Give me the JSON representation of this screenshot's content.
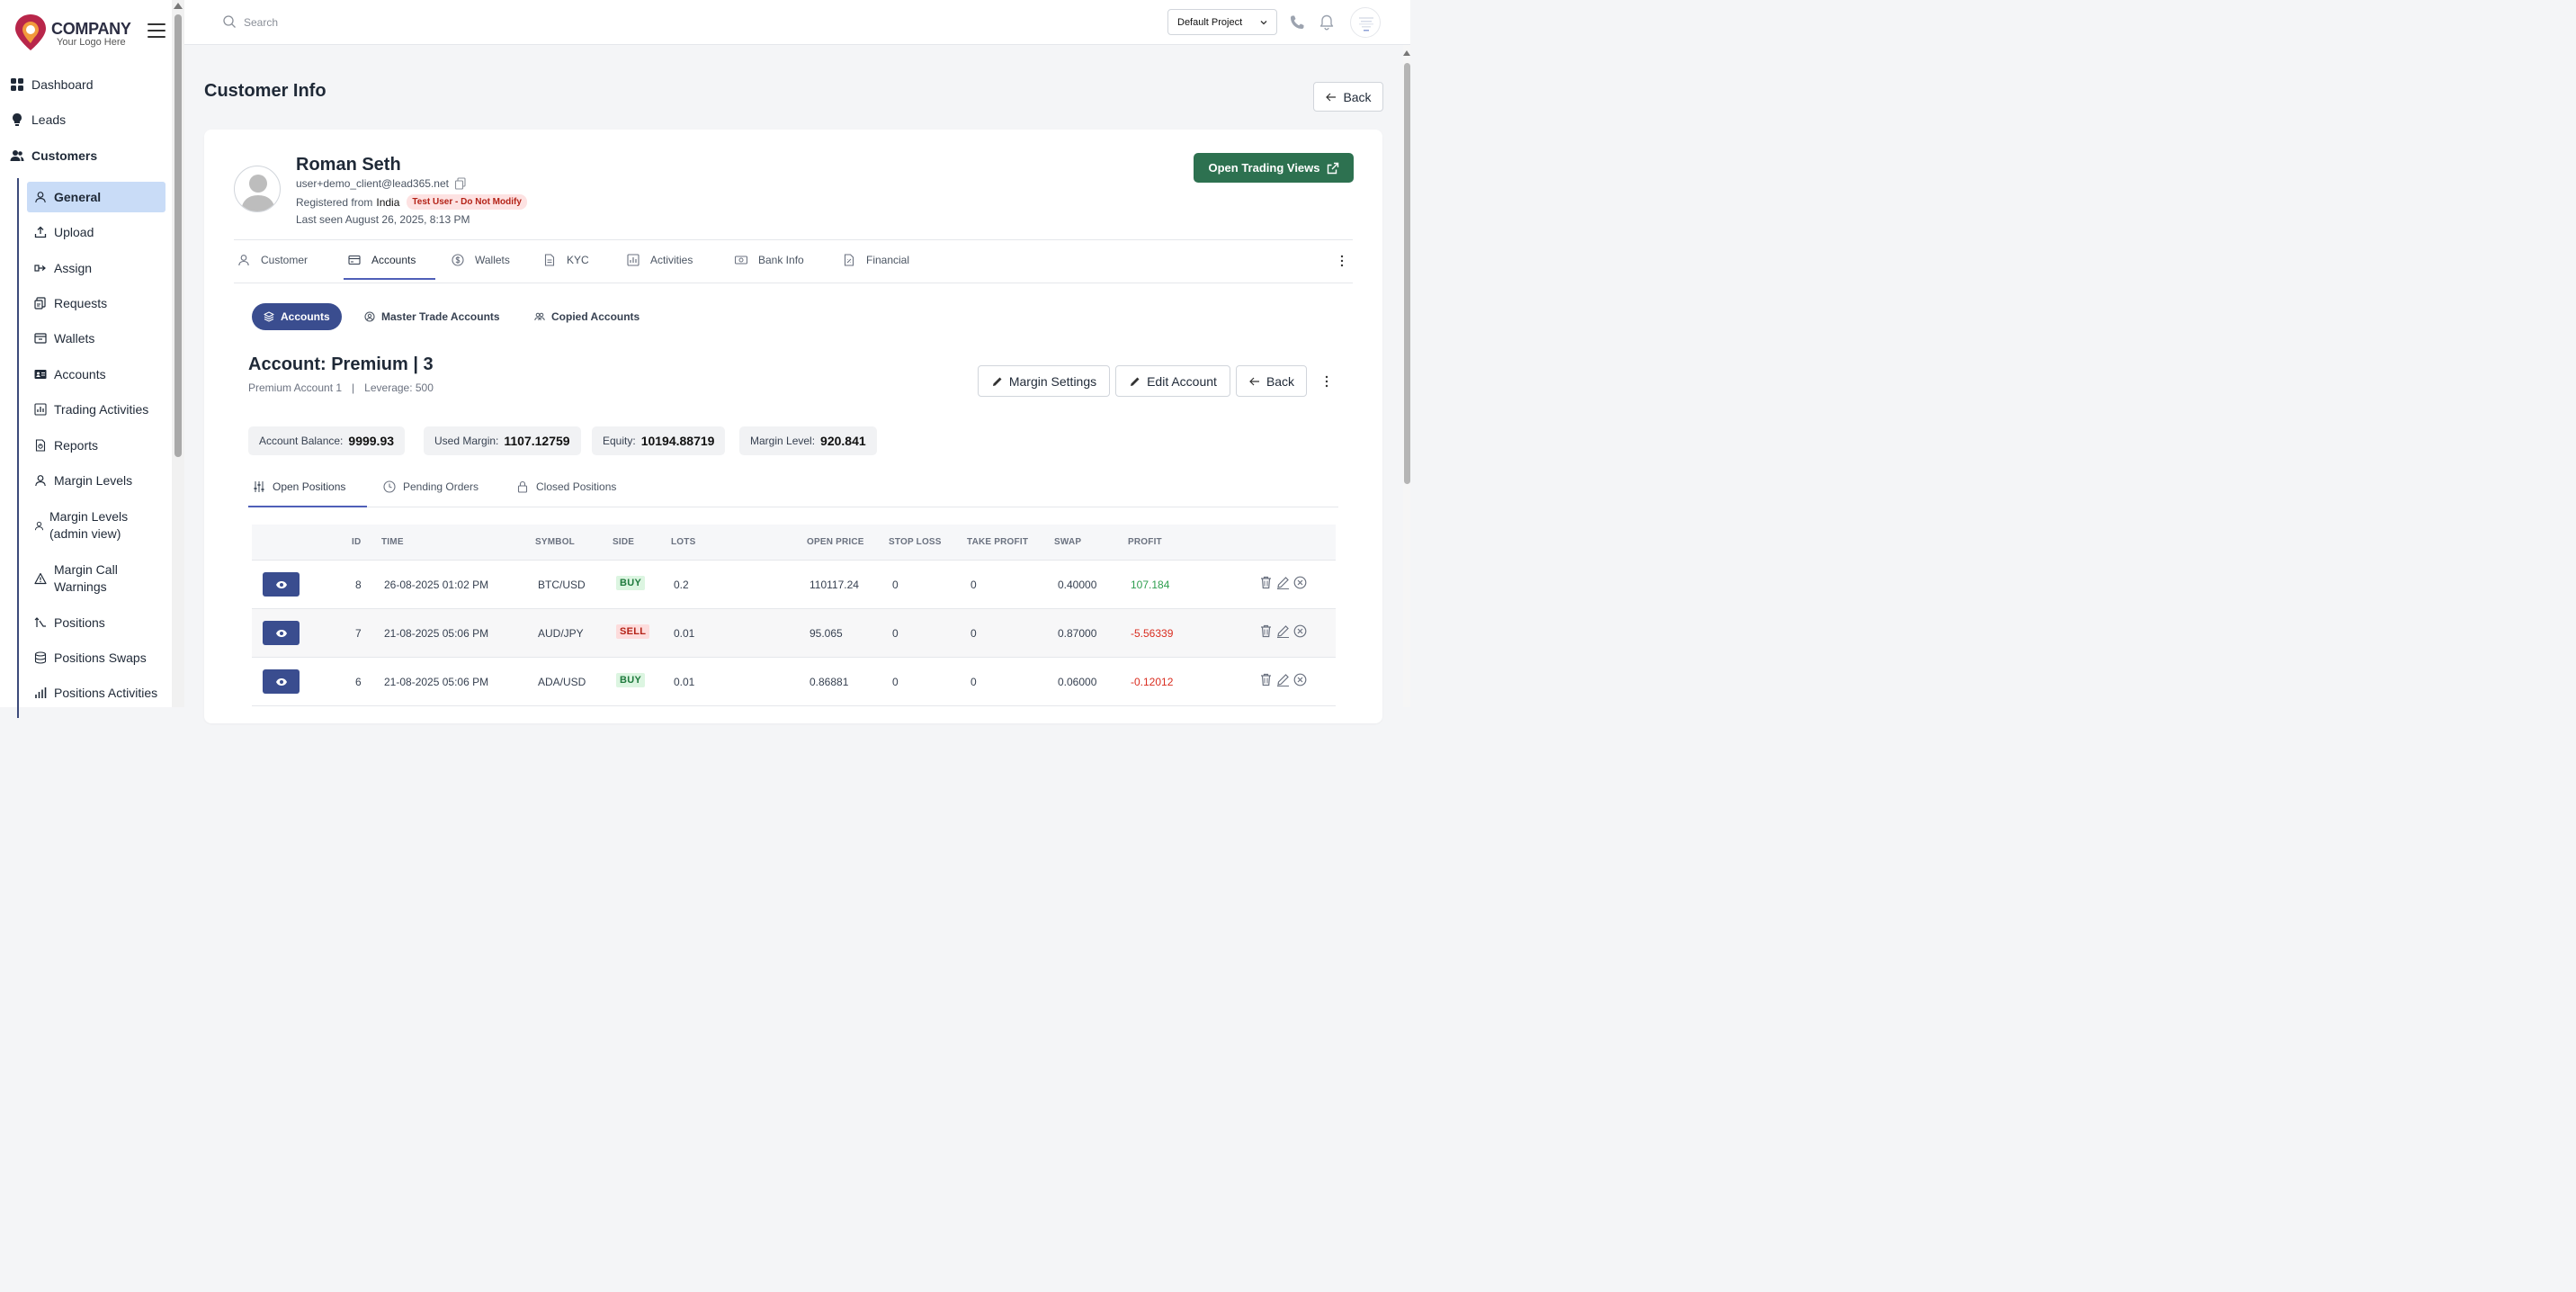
{
  "brand": {
    "name": "COMPANY",
    "tagline": "Your Logo Here"
  },
  "sidebar": {
    "top_items": [
      {
        "label": "Dashboard",
        "icon": "dashboard-grid-icon"
      },
      {
        "label": "Leads",
        "icon": "lightbulb-icon"
      },
      {
        "label": "Customers",
        "icon": "users-icon"
      }
    ],
    "sub_items": [
      {
        "label": "General",
        "icon": "user-icon",
        "active": true
      },
      {
        "label": "Upload",
        "icon": "upload-icon"
      },
      {
        "label": "Assign",
        "icon": "assign-icon"
      },
      {
        "label": "Requests",
        "icon": "requests-icon"
      },
      {
        "label": "Wallets",
        "icon": "wallet-icon"
      },
      {
        "label": "Accounts",
        "icon": "id-card-icon"
      },
      {
        "label": "Trading Activities",
        "icon": "chart-icon"
      },
      {
        "label": "Reports",
        "icon": "report-icon"
      },
      {
        "label": "Margin Levels",
        "icon": "user-icon"
      },
      {
        "label": "Margin Levels (admin view)",
        "icon": "user-icon"
      },
      {
        "label": "Margin Call Warnings",
        "icon": "warning-icon"
      },
      {
        "label": "Positions",
        "icon": "positions-icon"
      },
      {
        "label": "Positions Swaps",
        "icon": "database-icon"
      },
      {
        "label": "Positions Activities",
        "icon": "bar-chart-icon"
      }
    ]
  },
  "header": {
    "search_placeholder": "Search",
    "project": "Default Project"
  },
  "page": {
    "title": "Customer Info",
    "back_label": "Back"
  },
  "profile": {
    "name": "Roman Seth",
    "email": "user+demo_client@lead365.net",
    "registered_prefix": "Registered from",
    "country": "India",
    "badge": "Test User - Do Not Modify",
    "last_seen": "Last seen August 26, 2025, 8:13 PM",
    "open_trading_label": "Open Trading Views"
  },
  "main_tabs": [
    {
      "label": "Customer",
      "icon": "user-icon"
    },
    {
      "label": "Accounts",
      "icon": "credit-card-icon",
      "active": true
    },
    {
      "label": "Wallets",
      "icon": "dollar-circle-icon"
    },
    {
      "label": "KYC",
      "icon": "document-icon"
    },
    {
      "label": "Activities",
      "icon": "activity-chart-icon"
    },
    {
      "label": "Bank Info",
      "icon": "bank-note-icon"
    },
    {
      "label": "Financial",
      "icon": "financial-doc-icon"
    }
  ],
  "sub_tabs": [
    {
      "label": "Accounts",
      "icon": "layers-icon",
      "active": true
    },
    {
      "label": "Master Trade Accounts",
      "icon": "user-circle-icon"
    },
    {
      "label": "Copied Accounts",
      "icon": "copied-users-icon"
    }
  ],
  "account": {
    "title": "Account: Premium | 3",
    "name": "Premium Account 1",
    "separator": "|",
    "leverage": "Leverage: 500",
    "margin_settings_label": "Margin Settings",
    "edit_account_label": "Edit Account",
    "back_label": "Back"
  },
  "stats": [
    {
      "label": "Account Balance:",
      "value": "9999.93"
    },
    {
      "label": "Used Margin:",
      "value": "1107.12759"
    },
    {
      "label": "Equity:",
      "value": "10194.88719"
    },
    {
      "label": "Margin Level:",
      "value": "920.841"
    }
  ],
  "position_tabs": [
    {
      "label": "Open Positions",
      "icon": "sliders-icon",
      "active": true
    },
    {
      "label": "Pending Orders",
      "icon": "clock-icon"
    },
    {
      "label": "Closed Positions",
      "icon": "lock-icon"
    }
  ],
  "table": {
    "columns": [
      "ID",
      "TIME",
      "SYMBOL",
      "SIDE",
      "LOTS",
      "OPEN PRICE",
      "STOP LOSS",
      "TAKE PROFIT",
      "SWAP",
      "PROFIT"
    ],
    "rows": [
      {
        "id": "8",
        "time": "26-08-2025 01:02 PM",
        "symbol": "BTC/USD",
        "side": "BUY",
        "lots": "0.2",
        "open_price": "110117.24",
        "stop_loss": "0",
        "take_profit": "0",
        "swap": "0.40000",
        "profit": "107.184",
        "profit_positive": true
      },
      {
        "id": "7",
        "time": "21-08-2025 05:06 PM",
        "symbol": "AUD/JPY",
        "side": "SELL",
        "lots": "0.01",
        "open_price": "95.065",
        "stop_loss": "0",
        "take_profit": "0",
        "swap": "0.87000",
        "profit": "-5.56339",
        "profit_positive": false
      },
      {
        "id": "6",
        "time": "21-08-2025 05:06 PM",
        "symbol": "ADA/USD",
        "side": "BUY",
        "lots": "0.01",
        "open_price": "0.86881",
        "stop_loss": "0",
        "take_profit": "0",
        "swap": "0.06000",
        "profit": "-0.12012",
        "profit_positive": false
      }
    ]
  },
  "colors": {
    "primary": "#3a4d8f",
    "green_button": "#2d7150",
    "active_nav_bg": "#c9dcf7",
    "profit_positive": "#2e9e4f",
    "profit_negative": "#d92d20"
  }
}
